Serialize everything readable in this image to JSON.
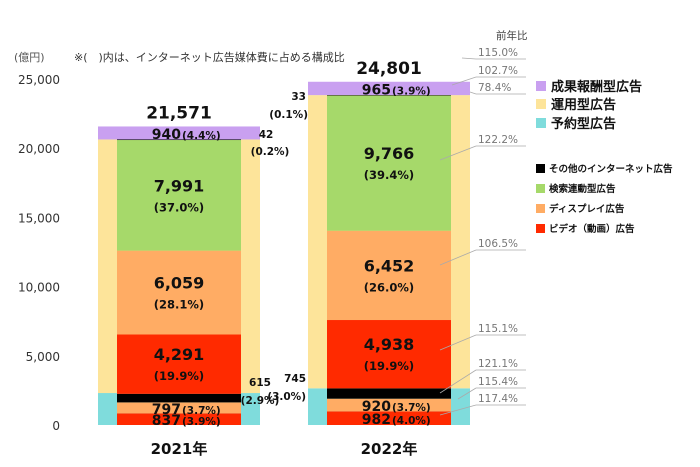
{
  "chart_data": {
    "type": "bar",
    "stacked": true,
    "unit_label": "(億円)",
    "note": "※(　)内は、インターネット広告媒体費に占める構成比",
    "yoy_header": "前年比",
    "ylim": [
      0,
      25000
    ],
    "yticks": [
      "0",
      "5,000",
      "10,000",
      "15,000",
      "20,000",
      "25,000"
    ],
    "categories": [
      "2021年",
      "2022年"
    ],
    "totals": [
      "21,571",
      "24,801"
    ],
    "outer_series": [
      {
        "name": "予約型広告",
        "color": "#7fdcdc",
        "values": [
          2310,
          2650
        ]
      },
      {
        "name": "運用型広告",
        "color": "#fde49a",
        "values": [
          18321,
          21186
        ]
      },
      {
        "name": "成果報酬型広告",
        "color": "#c9a0f0",
        "values": [
          940,
          965
        ]
      }
    ],
    "inner_series": [
      {
        "name": "ビデオ（動画）広告",
        "color": "#ff2a00",
        "values": [
          837,
          982
        ],
        "labels": [
          "837",
          "982"
        ],
        "pcts": [
          "(3.9%)",
          "(4.0%)"
        ]
      },
      {
        "name": "ディスプレイ広告",
        "color": "#ffac64",
        "values": [
          797,
          920
        ],
        "labels": [
          "797",
          "920"
        ],
        "pcts": [
          "(3.7%)",
          "(3.7%)"
        ]
      },
      {
        "name": "その他のインターネット広告",
        "color": "#000000",
        "values": [
          615,
          745
        ],
        "labels": [
          "615",
          "745"
        ],
        "pcts": [
          "(2.9%)",
          "(3.0%)"
        ]
      },
      {
        "name": "ビデオ（動画）広告",
        "color": "#ff2a00",
        "values": [
          4291,
          4938
        ],
        "labels": [
          "4,291",
          "4,938"
        ],
        "pcts": [
          "(19.9%)",
          "(19.9%)"
        ]
      },
      {
        "name": "ディスプレイ広告",
        "color": "#ffac64",
        "values": [
          6059,
          6452
        ],
        "labels": [
          "6,059",
          "6,452"
        ],
        "pcts": [
          "(28.1%)",
          "(26.0%)"
        ]
      },
      {
        "name": "検索連動型広告",
        "color": "#a6d96a",
        "values": [
          7991,
          9766
        ],
        "labels": [
          "7,991",
          "9,766"
        ],
        "pcts": [
          "(37.0%)",
          "(39.4%)"
        ]
      },
      {
        "name": "その他のインターネット広告",
        "color": "#000000",
        "values": [
          42,
          33
        ],
        "labels": [
          "42",
          "33"
        ],
        "pcts": [
          "(0.2%)",
          "(0.1%)"
        ]
      }
    ],
    "top_labels": {
      "values": [
        "940",
        "965"
      ],
      "pcts": [
        "(4.4%)",
        "(3.9%)"
      ]
    },
    "yoy": [
      "115.0%",
      "102.7%",
      "78.4%",
      "122.2%",
      "106.5%",
      "115.1%",
      "121.1%",
      "115.4%",
      "117.4%"
    ],
    "legend_main": [
      {
        "label": "成果報酬型広告",
        "color": "#c9a0f0"
      },
      {
        "label": "運用型広告",
        "color": "#fde49a"
      },
      {
        "label": "予約型広告",
        "color": "#7fdcdc"
      }
    ],
    "legend_sub": [
      {
        "label": "その他のインターネット広告",
        "color": "#000000"
      },
      {
        "label": "検索連動型広告",
        "color": "#a6d96a"
      },
      {
        "label": "ディスプレイ広告",
        "color": "#ffac64"
      },
      {
        "label": "ビデオ（動画）広告",
        "color": "#ff2a00"
      }
    ]
  }
}
